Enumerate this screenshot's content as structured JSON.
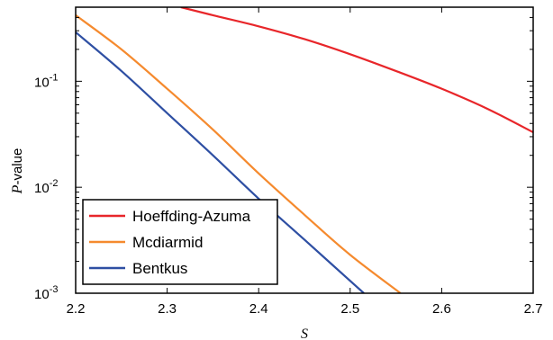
{
  "chart_data": {
    "type": "line",
    "xlabel_var": "S",
    "ylabel_var": "P",
    "ylabel_suffix": "-value",
    "xlim": [
      2.2,
      2.7
    ],
    "ylim": [
      0.001,
      0.5
    ],
    "yscale": "log",
    "grid": false,
    "legend_position": "lower-left",
    "x_ticks": [
      "2.2",
      "2.3",
      "2.4",
      "2.5",
      "2.6",
      "2.7"
    ],
    "y_ticks": [
      {
        "base": "10",
        "exp": "-3"
      },
      {
        "base": "10",
        "exp": "-2"
      },
      {
        "base": "10",
        "exp": "-1"
      }
    ],
    "series": [
      {
        "name": "Hoeffding-Azuma",
        "color": "#e8262a",
        "x": [
          2.315,
          2.35,
          2.4,
          2.45,
          2.5,
          2.55,
          2.6,
          2.65,
          2.7
        ],
        "y": [
          0.5,
          0.42,
          0.33,
          0.25,
          0.18,
          0.125,
          0.085,
          0.055,
          0.033
        ]
      },
      {
        "name": "Mcdiarmid",
        "color": "#f58a2e",
        "x": [
          2.2,
          2.25,
          2.3,
          2.35,
          2.4,
          2.45,
          2.5,
          2.555
        ],
        "y": [
          0.42,
          0.2,
          0.085,
          0.035,
          0.0135,
          0.0055,
          0.0023,
          0.001
        ]
      },
      {
        "name": "Bentkus",
        "color": "#2e4fa3",
        "x": [
          2.2,
          2.25,
          2.3,
          2.35,
          2.4,
          2.45,
          2.515
        ],
        "y": [
          0.29,
          0.125,
          0.05,
          0.02,
          0.0078,
          0.0032,
          0.001
        ]
      }
    ]
  }
}
